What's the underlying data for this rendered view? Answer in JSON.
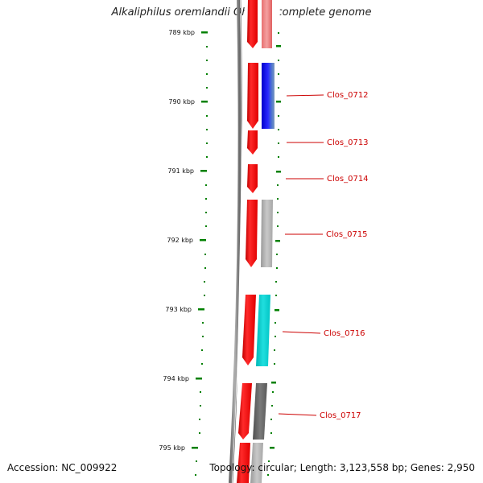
{
  "title": "Alkaliphilus oremlandii OhILAs, complete genome",
  "footer": {
    "accession": "Accession: NC_009922",
    "summary": "Topology: circular; Length: 3,123,558 bp; Genes: 2,950"
  },
  "ticks": [
    "789 kbp",
    "790 kbp",
    "791 kbp",
    "792 kbp",
    "793 kbp",
    "794 kbp",
    "795 kbp"
  ],
  "genes": [
    "Clos_0712",
    "Clos_0713",
    "Clos_0714",
    "Clos_0715",
    "Clos_0716",
    "Clos_0717"
  ],
  "colors": {
    "cds": "#ff0000",
    "tick": "#008000",
    "label": "#cc0000",
    "cog_blue": "#1a1aff",
    "cog_cyan": "#00cccc",
    "cog_grey": "#b0b0b0",
    "cog_dark": "#666666",
    "cog_pink": "#f08080"
  }
}
